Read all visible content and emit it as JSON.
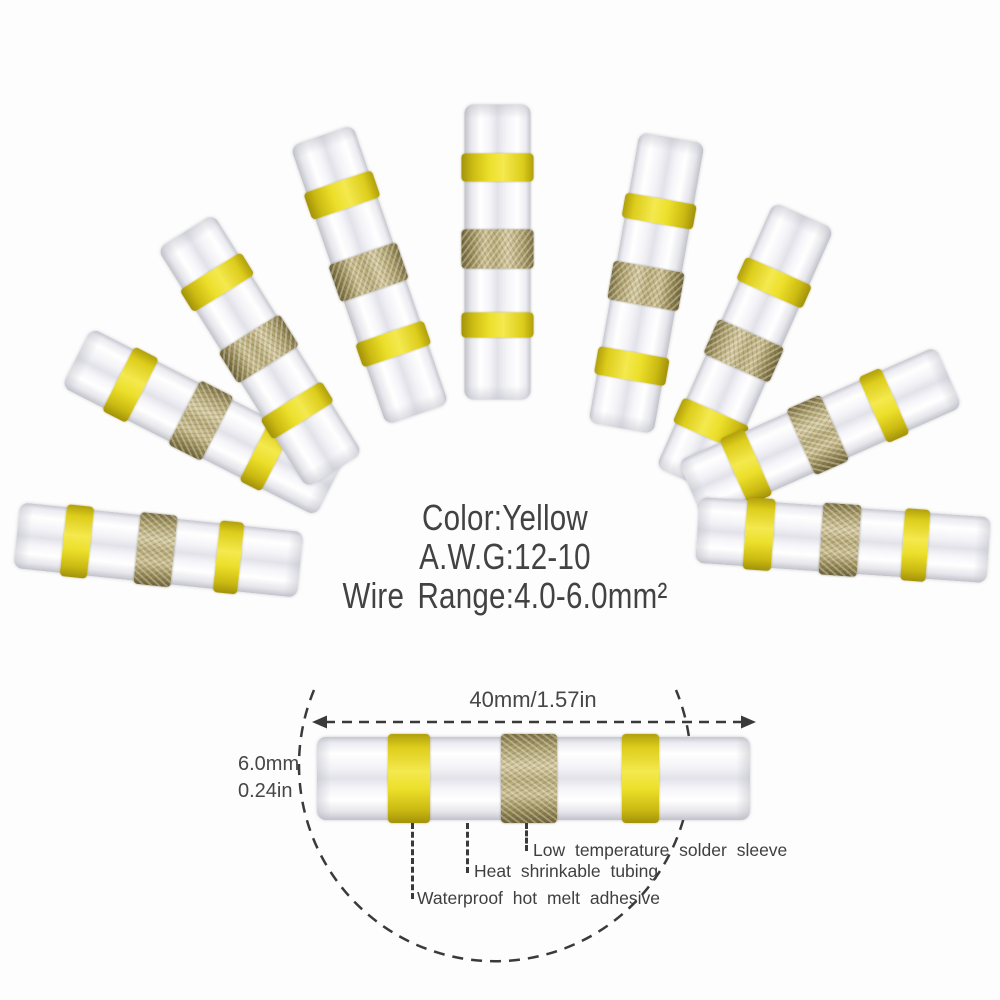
{
  "specs": {
    "color_line": "Color:Yellow",
    "awg_line": "A.W.G:12-10",
    "wire_range_line": "Wire Range:4.0-6.0mm²"
  },
  "dimensions": {
    "length": "40mm/1.57in",
    "diameter_mm": "6.0mm",
    "diameter_in": "0.24in"
  },
  "callouts": [
    {
      "label": "Low temperature solder sleeve"
    },
    {
      "label": "Heat shrinkable tubing"
    },
    {
      "label": "Waterproof hot melt adhesive"
    }
  ],
  "fan": {
    "connector_count": 9
  },
  "colors": {
    "band_yellow": "#e8d922",
    "solder_gold": "#b3a678",
    "annotation_line": "#3a3a3a",
    "text": "#424242",
    "background": "#fdfdfd"
  }
}
